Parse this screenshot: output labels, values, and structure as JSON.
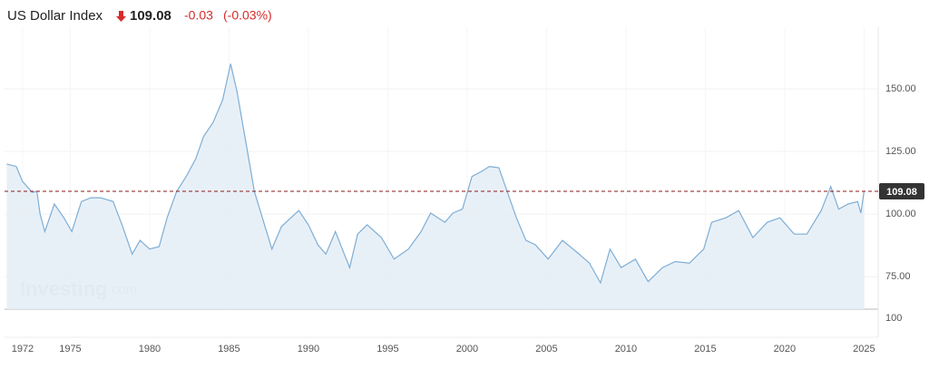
{
  "chart_data": {
    "type": "area-line",
    "title": "US Dollar Index",
    "last_price": "109.08",
    "change": "-0.03",
    "change_percent": "(-0.03%)",
    "watermark": {
      "brand": "Investing",
      "suffix": ".com"
    },
    "color": "#7eaed6",
    "fill": "#e4edf6",
    "reference_line": {
      "value": 109.08,
      "label": "109.08",
      "color": "#8b1a1a"
    },
    "x": [
      1971.0,
      1971.6,
      1972.0,
      1972.6,
      1972.9,
      1973.1,
      1973.4,
      1974.0,
      1974.6,
      1975.1,
      1975.7,
      1976.3,
      1976.9,
      1977.7,
      1978.3,
      1978.9,
      1979.4,
      1980.0,
      1980.6,
      1981.1,
      1981.7,
      1982.3,
      1982.9,
      1983.4,
      1984.0,
      1984.6,
      1985.1,
      1985.5,
      1986.0,
      1986.6,
      1987.1,
      1987.7,
      1988.3,
      1988.9,
      1989.4,
      1990.0,
      1990.6,
      1991.1,
      1991.7,
      1992.6,
      1993.1,
      1993.7,
      1994.6,
      1995.4,
      1996.3,
      1997.1,
      1997.7,
      1998.6,
      1999.1,
      1999.7,
      2000.3,
      2000.9,
      2001.4,
      2002.0,
      2002.6,
      2003.1,
      2003.7,
      2004.3,
      2005.1,
      2006.0,
      2006.9,
      2007.7,
      2008.4,
      2009.0,
      2009.7,
      2010.6,
      2011.4,
      2012.3,
      2013.1,
      2014.0,
      2014.9,
      2015.4,
      2016.3,
      2017.1,
      2018.0,
      2018.9,
      2019.7,
      2020.6,
      2021.4,
      2022.3,
      2022.9,
      2023.4,
      2024.0,
      2024.6,
      2024.8,
      2025.0
    ],
    "values": [
      120,
      119,
      113,
      108.7,
      109,
      100,
      93,
      104,
      98.5,
      93,
      105,
      106.5,
      106.5,
      105,
      95,
      84,
      89.5,
      86,
      87,
      98.5,
      109,
      115,
      122,
      131,
      136.6,
      145.6,
      160,
      149,
      131,
      109,
      98.5,
      86,
      95,
      98.5,
      101.4,
      95.7,
      87.7,
      84,
      93,
      78.6,
      92,
      95.7,
      90.6,
      82,
      86,
      93,
      100.4,
      96.7,
      100.4,
      102,
      115,
      117,
      119,
      118.5,
      107.6,
      98.5,
      89.5,
      87.7,
      82,
      89.5,
      84.8,
      80.4,
      72.5,
      86,
      78.6,
      82,
      73,
      78.6,
      81,
      80.4,
      86,
      96.7,
      98.5,
      101.4,
      90.6,
      96.7,
      98.5,
      92,
      92,
      101.4,
      111,
      102,
      104,
      105,
      100.4,
      109.08
    ],
    "xlim": [
      1970.86,
      2025.89
    ],
    "ylim": [
      62,
      169.2
    ],
    "xticks": [
      1972,
      1975,
      1980,
      1985,
      1990,
      1995,
      2000,
      2005,
      2010,
      2015,
      2020,
      2025
    ],
    "yticks": [
      {
        "value": 75,
        "label": "75.00"
      },
      {
        "value": 100,
        "label": "100.00"
      },
      {
        "value": 125,
        "label": "125.00"
      },
      {
        "value": 150,
        "label": "150.00"
      }
    ],
    "volume_yticks": [
      100
    ],
    "grid": true
  }
}
